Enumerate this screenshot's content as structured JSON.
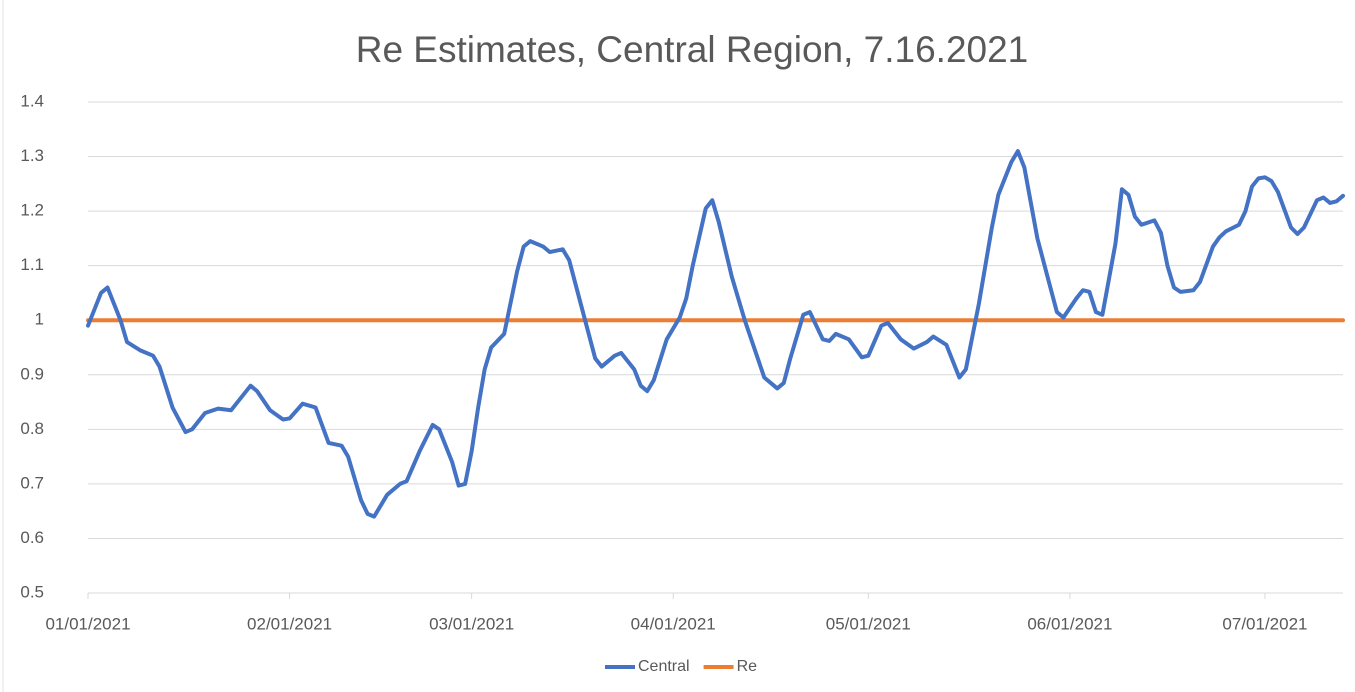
{
  "chart_data": {
    "type": "line",
    "title": "Re Estimates, Central Region, 7.16.2021",
    "xlim": [
      "01/01/2021",
      "07/13/2021"
    ],
    "xticks": [
      "01/01/2021",
      "02/01/2021",
      "03/01/2021",
      "04/01/2021",
      "05/01/2021",
      "06/01/2021",
      "07/01/2021"
    ],
    "ylim": [
      0.5,
      1.4
    ],
    "yticks": [
      0.5,
      0.6,
      0.7,
      0.8,
      0.9,
      1,
      1.1,
      1.2,
      1.3,
      1.4
    ],
    "grid": true,
    "legend": "bottom",
    "series": [
      {
        "name": "Central",
        "color": "#4472c4",
        "x": [
          "01/01/2021",
          "01/03/2021",
          "01/04/2021",
          "01/06/2021",
          "01/07/2021",
          "01/09/2021",
          "01/11/2021",
          "01/12/2021",
          "01/14/2021",
          "01/16/2021",
          "01/17/2021",
          "01/19/2021",
          "01/21/2021",
          "01/23/2021",
          "01/24/2021",
          "01/26/2021",
          "01/27/2021",
          "01/29/2021",
          "01/31/2021",
          "02/01/2021",
          "02/03/2021",
          "02/05/2021",
          "02/07/2021",
          "02/09/2021",
          "02/10/2021",
          "02/12/2021",
          "02/13/2021",
          "02/14/2021",
          "02/16/2021",
          "02/18/2021",
          "02/19/2021",
          "02/21/2021",
          "02/23/2021",
          "02/24/2021",
          "02/26/2021",
          "02/27/2021",
          "02/28/2021",
          "03/01/2021",
          "03/02/2021",
          "03/03/2021",
          "03/04/2021",
          "03/06/2021",
          "03/08/2021",
          "03/09/2021",
          "03/10/2021",
          "03/12/2021",
          "03/13/2021",
          "03/15/2021",
          "03/16/2021",
          "03/18/2021",
          "03/20/2021",
          "03/21/2021",
          "03/23/2021",
          "03/24/2021",
          "03/26/2021",
          "03/27/2021",
          "03/28/2021",
          "03/29/2021",
          "03/31/2021",
          "04/02/2021",
          "04/03/2021",
          "04/04/2021",
          "04/06/2021",
          "04/07/2021",
          "04/08/2021",
          "04/10/2021",
          "04/11/2021",
          "04/12/2021",
          "04/14/2021",
          "04/15/2021",
          "04/17/2021",
          "04/18/2021",
          "04/19/2021",
          "04/21/2021",
          "04/22/2021",
          "04/24/2021",
          "04/25/2021",
          "04/26/2021",
          "04/28/2021",
          "04/30/2021",
          "05/01/2021",
          "05/03/2021",
          "05/04/2021",
          "05/06/2021",
          "05/08/2021",
          "05/10/2021",
          "05/11/2021",
          "05/13/2021",
          "05/15/2021",
          "05/16/2021",
          "05/18/2021",
          "05/20/2021",
          "05/21/2021",
          "05/23/2021",
          "05/24/2021",
          "05/25/2021",
          "05/27/2021",
          "05/29/2021",
          "05/30/2021",
          "05/31/2021",
          "06/02/2021",
          "06/03/2021",
          "06/04/2021",
          "06/05/2021",
          "06/06/2021",
          "06/08/2021",
          "06/09/2021",
          "06/10/2021",
          "06/11/2021",
          "06/12/2021",
          "06/14/2021",
          "06/15/2021",
          "06/16/2021",
          "06/17/2021",
          "06/18/2021",
          "06/20/2021",
          "06/21/2021",
          "06/23/2021",
          "06/24/2021",
          "06/25/2021",
          "06/27/2021",
          "06/28/2021",
          "06/29/2021",
          "06/30/2021",
          "07/01/2021",
          "07/02/2021",
          "07/03/2021",
          "07/05/2021",
          "07/06/2021",
          "07/07/2021",
          "07/09/2021",
          "07/10/2021",
          "07/11/2021",
          "07/12/2021",
          "07/13/2021"
        ],
        "values": [
          0.99,
          1.05,
          1.06,
          1.0,
          0.96,
          0.945,
          0.935,
          0.915,
          0.84,
          0.795,
          0.8,
          0.83,
          0.838,
          0.835,
          0.85,
          0.88,
          0.87,
          0.835,
          0.818,
          0.82,
          0.847,
          0.84,
          0.775,
          0.77,
          0.75,
          0.67,
          0.645,
          0.64,
          0.68,
          0.7,
          0.705,
          0.76,
          0.808,
          0.8,
          0.74,
          0.697,
          0.7,
          0.76,
          0.84,
          0.91,
          0.95,
          0.975,
          1.09,
          1.135,
          1.145,
          1.135,
          1.125,
          1.13,
          1.11,
          1.02,
          0.93,
          0.915,
          0.935,
          0.94,
          0.91,
          0.88,
          0.87,
          0.89,
          0.965,
          1.005,
          1.04,
          1.1,
          1.205,
          1.22,
          1.18,
          1.08,
          1.04,
          1.0,
          0.93,
          0.895,
          0.875,
          0.885,
          0.93,
          1.01,
          1.015,
          0.965,
          0.962,
          0.975,
          0.965,
          0.932,
          0.935,
          0.99,
          0.995,
          0.965,
          0.948,
          0.96,
          0.97,
          0.955,
          0.895,
          0.91,
          1.03,
          1.17,
          1.23,
          1.29,
          1.31,
          1.28,
          1.15,
          1.06,
          1.015,
          1.005,
          1.04,
          1.055,
          1.052,
          1.015,
          1.01,
          1.14,
          1.24,
          1.23,
          1.19,
          1.175,
          1.183,
          1.16,
          1.1,
          1.06,
          1.052,
          1.055,
          1.07,
          1.135,
          1.152,
          1.163,
          1.175,
          1.2,
          1.245,
          1.26,
          1.262,
          1.255,
          1.235,
          1.17,
          1.158,
          1.17,
          1.22,
          1.225,
          1.215,
          1.218,
          1.228
        ]
      },
      {
        "name": "Re",
        "color": "#ed7d31",
        "x": [
          "01/01/2021",
          "07/13/2021"
        ],
        "values": [
          1,
          1
        ]
      }
    ]
  }
}
